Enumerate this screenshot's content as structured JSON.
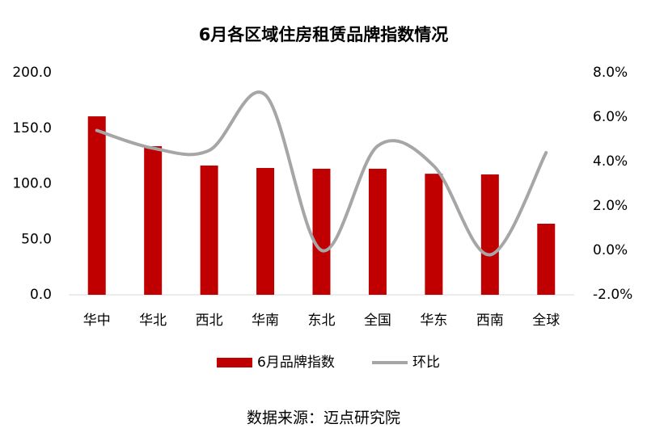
{
  "chart_data": {
    "type": "bar_line",
    "title": "6月各区域住房租赁品牌指数情况",
    "categories": [
      "华中",
      "华北",
      "西北",
      "华南",
      "东北",
      "全国",
      "华东",
      "西南",
      "全球"
    ],
    "series": [
      {
        "name": "6月品牌指数",
        "color": "#c00000",
        "type": "bar",
        "values": [
          160.7,
          133.8,
          116.4,
          114.2,
          113.5,
          113.5,
          109.0,
          108.4,
          64.0
        ]
      },
      {
        "name": "环比",
        "color": "#a6a6a6",
        "type": "line",
        "axis": "y2",
        "smooth": true,
        "values": [
          5.4,
          4.6,
          4.5,
          7.0,
          0.0,
          4.7,
          3.8,
          -0.2,
          4.4
        ]
      }
    ],
    "ylim": [
      0,
      200
    ],
    "yticks": [
      {
        "value": 0,
        "label": "0.0"
      },
      {
        "value": 50,
        "label": "50.0"
      },
      {
        "value": 100,
        "label": "100.0"
      },
      {
        "value": 150,
        "label": "150.0"
      },
      {
        "value": 200,
        "label": "200.0"
      }
    ],
    "y2lim": [
      -2,
      8
    ],
    "y2ticks": [
      {
        "value": -2,
        "label": "-2.0%"
      },
      {
        "value": 0,
        "label": "0.0%"
      },
      {
        "value": 2,
        "label": "2.0%"
      },
      {
        "value": 4,
        "label": "4.0%"
      },
      {
        "value": 6,
        "label": "6.0%"
      },
      {
        "value": 8,
        "label": "8.0%"
      }
    ],
    "legend": "bottom",
    "source": "数据来源：迈点研究院"
  }
}
